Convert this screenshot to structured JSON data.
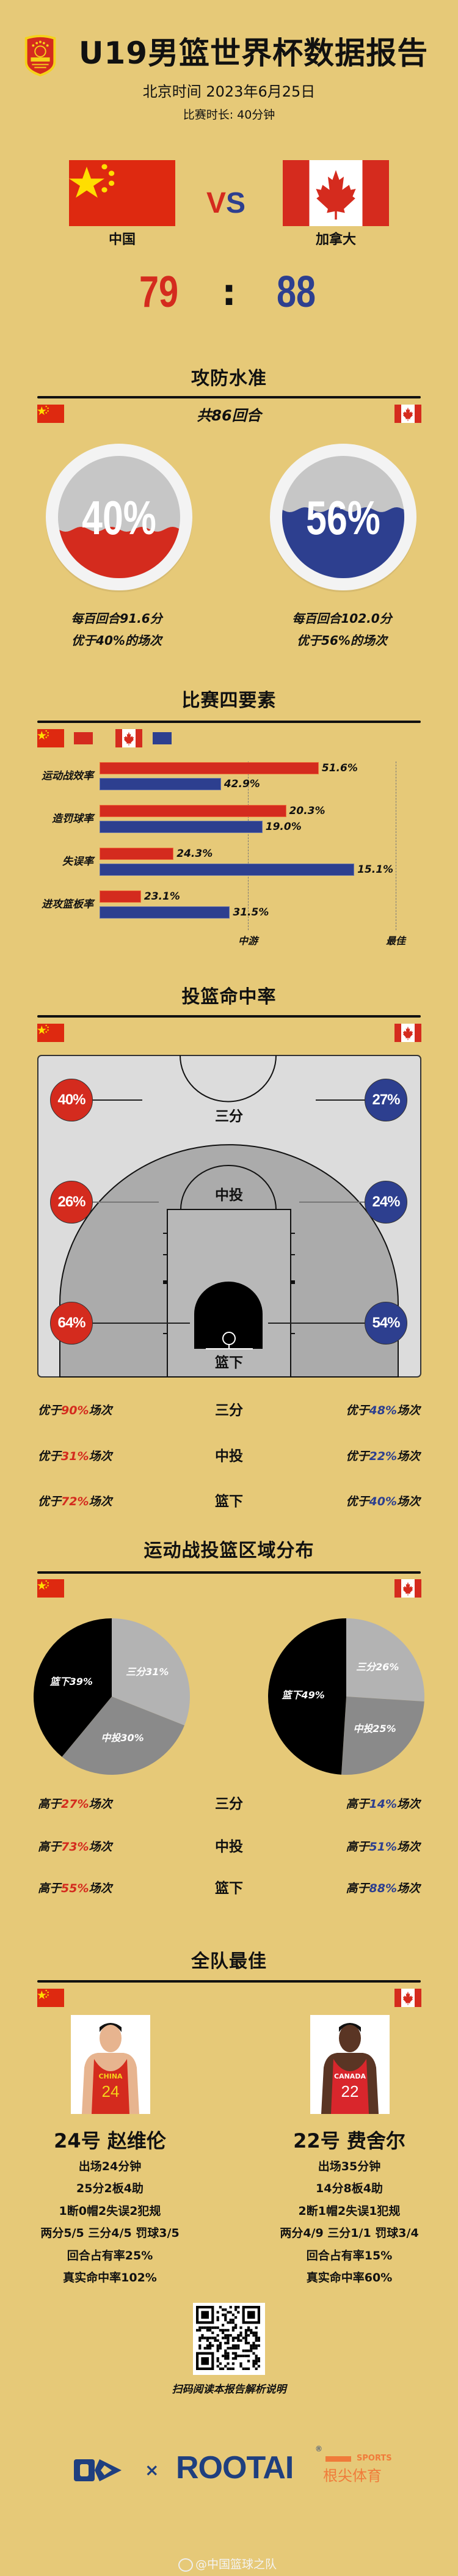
{
  "header": {
    "logo_text": "中国篮协 CHINESE BASKETBALL ASSOCIATION",
    "title": "U19男篮世界杯数据报告",
    "date": "北京时间 2023年6月25日",
    "duration": "比赛时长: 40分钟"
  },
  "match": {
    "vs": [
      "V",
      "S"
    ],
    "home": {
      "name": "中国",
      "score": "79",
      "flag": "china-flag"
    },
    "away": {
      "name": "加拿大",
      "score": "88",
      "flag": "canada-flag"
    },
    "colon": ":"
  },
  "colors": {
    "home": "#d42b1e",
    "away": "#2d3f8f",
    "background": "#e6c978"
  },
  "efficiency": {
    "title": "攻防水准",
    "possessions": "共86回合",
    "home": {
      "percent_label": "40%",
      "level": 0.4,
      "per100": "每百回合91.6分",
      "rank": "优于40%的场次"
    },
    "away": {
      "percent_label": "56%",
      "level": 0.56,
      "per100": "每百回合102.0分",
      "rank": "优于56%的场次"
    }
  },
  "four_factors": {
    "title": "比赛四要素",
    "mid_label": "中游",
    "best_label": "最佳"
  },
  "shooting": {
    "title": "投篮命中率",
    "zones": [
      "三分",
      "中投",
      "篮下"
    ],
    "home": [
      "40%",
      "26%",
      "64%"
    ],
    "away": [
      "27%",
      "24%",
      "54%"
    ],
    "rank_rows": [
      {
        "zone": "三分",
        "home": [
          "优于",
          "90%",
          "场次"
        ],
        "away": [
          "优于",
          "48%",
          "场次"
        ]
      },
      {
        "zone": "中投",
        "home": [
          "优于",
          "31%",
          "场次"
        ],
        "away": [
          "优于",
          "22%",
          "场次"
        ]
      },
      {
        "zone": "篮下",
        "home": [
          "优于",
          "72%",
          "场次"
        ],
        "away": [
          "优于",
          "40%",
          "场次"
        ]
      }
    ]
  },
  "distribution": {
    "title": "运动战投篮区域分布",
    "rank_rows": [
      {
        "zone": "三分",
        "home": [
          "高于",
          "27%",
          "场次"
        ],
        "away": [
          "高于",
          "14%",
          "场次"
        ]
      },
      {
        "zone": "中投",
        "home": [
          "高于",
          "73%",
          "场次"
        ],
        "away": [
          "高于",
          "51%",
          "场次"
        ]
      },
      {
        "zone": "篮下",
        "home": [
          "高于",
          "55%",
          "场次"
        ],
        "away": [
          "高于",
          "88%",
          "场次"
        ]
      }
    ]
  },
  "chart_data": [
    {
      "type": "bar",
      "title": "比赛四要素",
      "orientation": "horizontal",
      "categories": [
        "运动战效率",
        "造罚球率",
        "失误率",
        "进攻篮板率"
      ],
      "axis_labels": [
        "中游",
        "最佳"
      ],
      "series": [
        {
          "team": "中国",
          "color": "#d42b1e",
          "values": [
            "51.6%",
            "20.3%",
            "24.3%",
            "23.1%"
          ],
          "levels": [
            0.74,
            0.63,
            0.25,
            0.14
          ]
        },
        {
          "team": "加拿大",
          "color": "#2d3f8f",
          "values": [
            "42.9%",
            "19.0%",
            "15.1%",
            "31.5%"
          ],
          "levels": [
            0.41,
            0.55,
            0.86,
            0.44
          ]
        }
      ],
      "reference_lines": {
        "中游": 0.5,
        "最佳": 1.0
      }
    },
    {
      "type": "pie",
      "team": "中国",
      "slices": [
        {
          "label": "三分",
          "value": 31,
          "text": "三分31%",
          "color": "#b3b3b3"
        },
        {
          "label": "中投",
          "value": 30,
          "text": "中投30%",
          "color": "#8a8a8a"
        },
        {
          "label": "篮下",
          "value": 39,
          "text": "篮下39%",
          "color": "#000000"
        }
      ]
    },
    {
      "type": "pie",
      "team": "加拿大",
      "slices": [
        {
          "label": "三分",
          "value": 26,
          "text": "三分26%",
          "color": "#b3b3b3"
        },
        {
          "label": "中投",
          "value": 25,
          "text": "中投25%",
          "color": "#8a8a8a"
        },
        {
          "label": "篮下",
          "value": 49,
          "text": "篮下49%",
          "color": "#000000"
        }
      ]
    }
  ],
  "best": {
    "title": "全队最佳",
    "home": {
      "jersey_team": "CHINA",
      "jersey_number": "24",
      "name": "24号 赵维伦",
      "lines": [
        "出场24分钟",
        "25分2板4助",
        "1断0帽2失误2犯规",
        "两分5/5 三分4/5 罚球3/5",
        "回合占有率25%",
        "真实命中率102%"
      ]
    },
    "away": {
      "jersey_team": "CANADA",
      "jersey_number": "22",
      "name": "22号 费舍尔",
      "lines": [
        "出场35分钟",
        "14分8板4助",
        "2断1帽2失误1犯规",
        "两分4/9 三分1/1 罚球3/4",
        "回合占有率15%",
        "真实命中率60%"
      ]
    }
  },
  "footer": {
    "qr_caption": "扫码阅读本报告解析说明",
    "times": "×",
    "brand": "ROOTAI",
    "registered": "®",
    "sports": "SPORTS",
    "brand_cn": "根尖体育",
    "watermark": "@中国篮球之队"
  }
}
